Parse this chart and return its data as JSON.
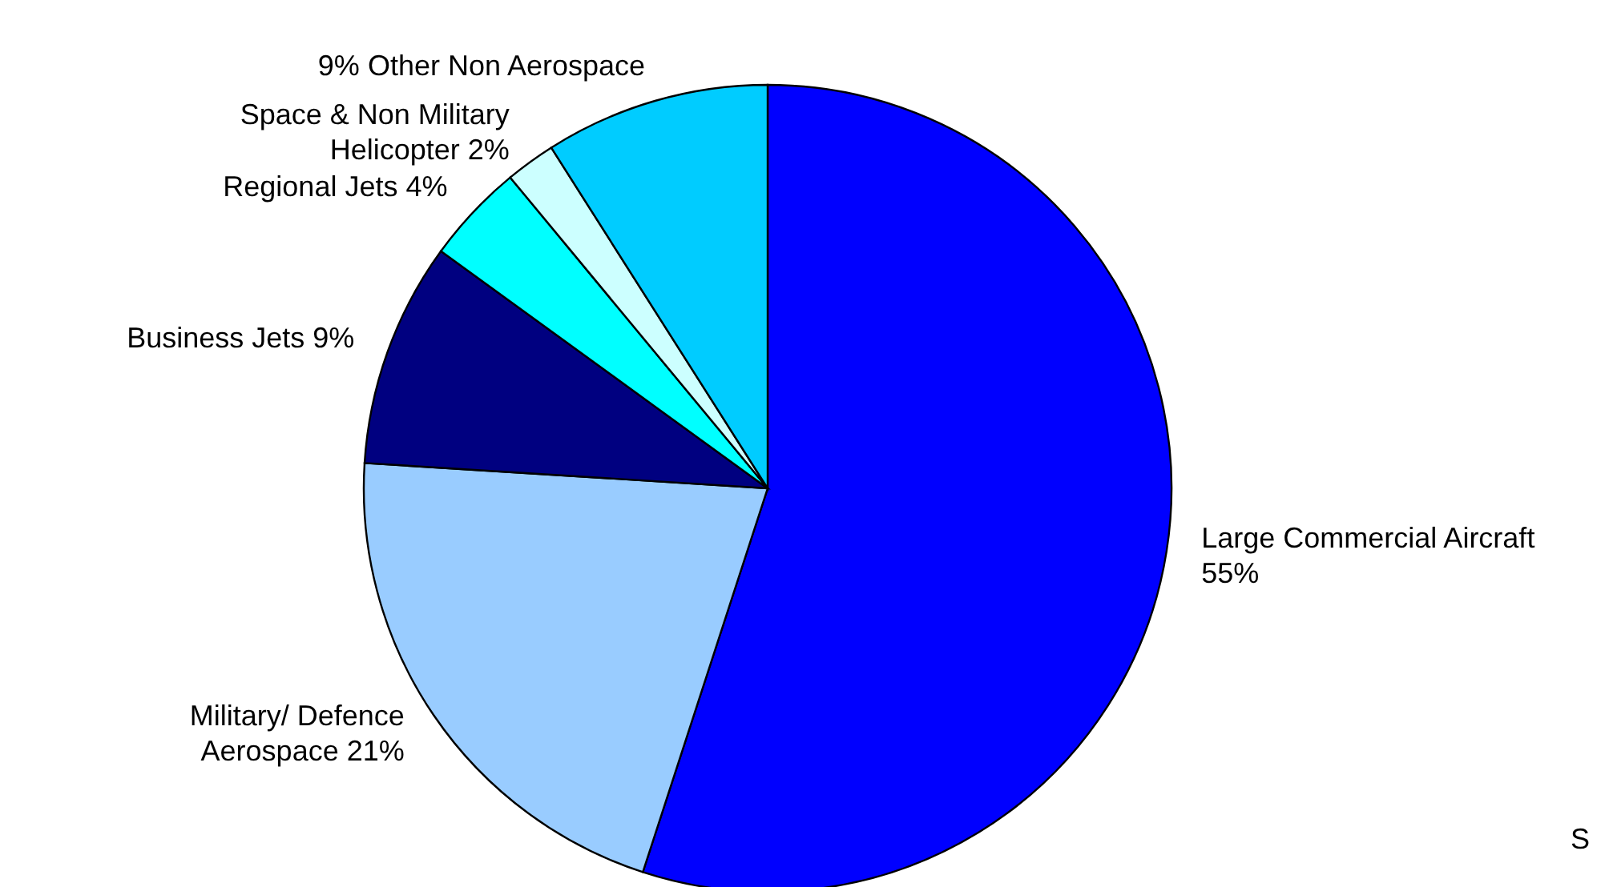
{
  "chart_data": {
    "type": "pie",
    "categories": [
      "Large Commercial Aircraft 55%",
      "Military/ Defence Aerospace 21%",
      "Business Jets 9%",
      "Regional Jets 4%",
      "Space & Non Military Helicopter 2%",
      "9% Other Non Aerospace"
    ],
    "values": [
      55,
      21,
      9,
      4,
      2,
      9
    ],
    "colors": [
      "#0000ff",
      "#99ccff",
      "#000080",
      "#00ffff",
      "#ccffff",
      "#00ccff"
    ],
    "annotations": [
      "S"
    ]
  }
}
